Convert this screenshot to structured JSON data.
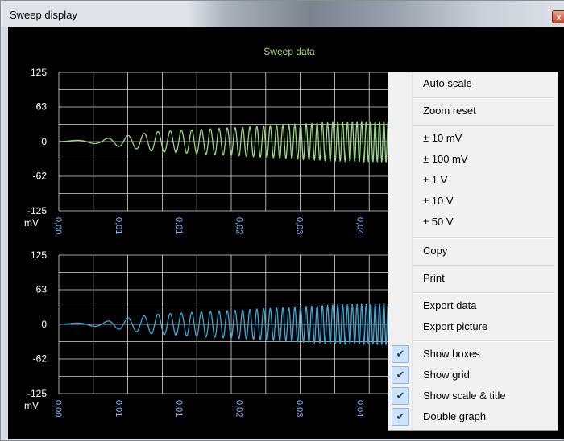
{
  "window": {
    "title": "Sweep display",
    "close_glyph": "x"
  },
  "colors": {
    "background": "#000000",
    "grid": "#d8d8d8",
    "title": "#a7dc80",
    "top_trace": "#97d781",
    "bottom_trace": "#3ba9d8",
    "x_tick_label": "#7fb8ff",
    "axis_text": "#ffffff"
  },
  "chart_data": [
    {
      "type": "line",
      "title": "Sweep data",
      "ylabel": "mV",
      "yticks": [
        "125",
        "63",
        "0",
        "-62",
        "-125"
      ],
      "xticks": [
        "0,00",
        "0,01",
        "0,01",
        "0,02",
        "0,03",
        "0,04"
      ],
      "ylim": [
        -125,
        125
      ],
      "xlim": [
        0,
        0.05
      ],
      "grid": true,
      "series": [
        {
          "signal": "chirp",
          "amplitude_envelope": [
            [
              0.0,
              1
            ],
            [
              0.006,
              4
            ],
            [
              0.014,
              18
            ],
            [
              0.025,
              25
            ],
            [
              0.04,
              35
            ],
            [
              0.05,
              38
            ]
          ],
          "frequency_start": 60,
          "frequency_end": 1700
        }
      ]
    },
    {
      "type": "line",
      "title": "",
      "ylabel": "mV",
      "yticks": [
        "125",
        "63",
        "0",
        "-62",
        "-125"
      ],
      "xticks": [
        "0,00",
        "0,01",
        "0,01",
        "0,02",
        "0,03",
        "0,04"
      ],
      "ylim": [
        -125,
        125
      ],
      "xlim": [
        0,
        0.05
      ],
      "grid": true,
      "series": [
        {
          "signal": "chirp",
          "amplitude_envelope": [
            [
              0.0,
              1
            ],
            [
              0.006,
              4
            ],
            [
              0.014,
              18
            ],
            [
              0.025,
              25
            ],
            [
              0.04,
              35
            ],
            [
              0.05,
              38
            ]
          ],
          "frequency_start": 60,
          "frequency_end": 1700
        }
      ]
    }
  ],
  "context_menu": {
    "items": [
      {
        "label": "Auto scale",
        "checked": false
      },
      {
        "label": "Zoom reset",
        "checked": false
      },
      {
        "label": "± 10 mV",
        "checked": false
      },
      {
        "label": "± 100 mV",
        "checked": false
      },
      {
        "label": "± 1 V",
        "checked": false
      },
      {
        "label": "± 10 V",
        "checked": false
      },
      {
        "label": "± 50 V",
        "checked": false
      },
      {
        "label": "Copy",
        "checked": false
      },
      {
        "label": "Print",
        "checked": false
      },
      {
        "label": "Export data",
        "checked": false
      },
      {
        "label": "Export picture",
        "checked": false
      },
      {
        "label": "Show boxes",
        "checked": true
      },
      {
        "label": "Show grid",
        "checked": true
      },
      {
        "label": "Show scale & title",
        "checked": true
      },
      {
        "label": "Double graph",
        "checked": true
      }
    ],
    "check_glyph": "✔"
  }
}
